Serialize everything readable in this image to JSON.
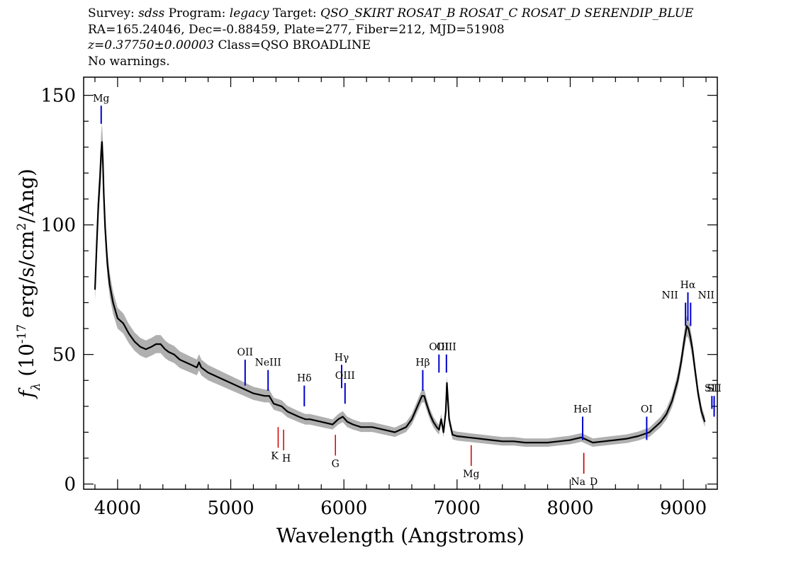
{
  "header": {
    "line1": {
      "survey_label": "Survey:",
      "survey_value": "sdss",
      "program_label": "Program:",
      "program_value": "legacy",
      "target_label": "Target:",
      "target_value": "QSO_SKIRT ROSAT_B ROSAT_C ROSAT_D SERENDIP_BLUE"
    },
    "line2": "RA=165.24046, Dec=-0.88459, Plate=277, Fiber=212, MJD=51908",
    "line3": {
      "redshift": "z=0.37750±0.00003",
      "class": "Class=QSO BROADLINE"
    },
    "line4": "No warnings."
  },
  "chart_data": {
    "type": "line",
    "title": "",
    "xlabel": "Wavelength (Angstroms)",
    "ylabel": "f_λ (10^-17 erg/s/cm^2/Ang)",
    "xlim": [
      3700,
      9300
    ],
    "ylim": [
      -2,
      157
    ],
    "x_ticks": [
      4000,
      5000,
      6000,
      7000,
      8000,
      9000
    ],
    "y_ticks": [
      0,
      50,
      100,
      150
    ],
    "grid": false,
    "colors": {
      "flux": "#000000",
      "error_band": "#b0b0b0",
      "emission": "#0000cc",
      "absorption": "#cc0000"
    },
    "series": [
      {
        "x": [
          3800,
          3815,
          3830,
          3845,
          3855,
          3862,
          3870,
          3878,
          3890,
          3910,
          3930,
          3960,
          4000,
          4050,
          4100,
          4150,
          4200,
          4250,
          4300,
          4340,
          4380,
          4420,
          4450,
          4500,
          4550,
          4600,
          4650,
          4700,
          4720,
          4740,
          4800,
          4900,
          5000,
          5100,
          5200,
          5300,
          5340,
          5380,
          5450,
          5500,
          5600,
          5660,
          5700,
          5800,
          5900,
          5950,
          5990,
          6030,
          6080,
          6150,
          6250,
          6350,
          6450,
          6550,
          6600,
          6650,
          6690,
          6710,
          6730,
          6760,
          6790,
          6820,
          6840,
          6860,
          6880,
          6900,
          6910,
          6930,
          6960,
          7000,
          7100,
          7200,
          7300,
          7400,
          7500,
          7600,
          7700,
          7800,
          7900,
          8000,
          8050,
          8100,
          8150,
          8200,
          8300,
          8400,
          8500,
          8600,
          8700,
          8750,
          8800,
          8850,
          8900,
          8950,
          8980,
          9010,
          9030,
          9045,
          9060,
          9080,
          9100,
          9130,
          9160,
          9190
        ],
        "values": [
          75,
          92,
          108,
          118,
          128,
          132,
          125,
          112,
          99,
          85,
          77,
          70,
          64,
          62,
          58,
          55,
          53,
          52,
          53,
          54,
          54,
          52,
          51,
          50,
          48,
          47,
          46,
          45,
          47,
          45,
          43,
          41,
          39,
          37,
          35,
          34,
          34,
          31,
          30,
          28,
          26,
          25,
          25,
          24,
          23,
          25,
          26,
          24,
          23,
          22,
          22,
          21,
          20,
          22,
          25,
          30,
          34,
          34,
          31,
          27,
          24,
          22,
          21,
          25,
          20,
          28,
          39,
          25,
          19,
          18.5,
          18,
          17.5,
          17,
          16.5,
          16.5,
          16,
          16,
          16,
          16.5,
          17,
          17.5,
          18,
          17,
          16,
          16.5,
          17,
          17.5,
          18.5,
          20,
          22,
          24,
          27,
          32,
          40,
          47,
          56,
          61,
          60,
          57,
          52,
          45,
          35,
          28,
          24
        ]
      }
    ],
    "emission_lines": [
      {
        "label": "Mg",
        "x": 3855,
        "y0": 139,
        "y1": 146
      },
      {
        "label": "OII",
        "x": 5127,
        "y0": 38,
        "y1": 48
      },
      {
        "label": "NeIII",
        "x": 5330,
        "y0": 36,
        "y1": 44
      },
      {
        "label": "Hδ",
        "x": 5650,
        "y0": 30,
        "y1": 38
      },
      {
        "label": "Hγ",
        "x": 5980,
        "y0": 37,
        "y1": 46
      },
      {
        "label": "OIII",
        "x": 6010,
        "y0": 31,
        "y1": 39
      },
      {
        "label": "Hβ",
        "x": 6697,
        "y0": 36,
        "y1": 44
      },
      {
        "label": "OIII",
        "x": 6840,
        "y0": 43,
        "y1": 50
      },
      {
        "label": "OIII",
        "x": 6906,
        "y0": 43,
        "y1": 50
      },
      {
        "label": "HeI",
        "x": 8110,
        "y0": 17,
        "y1": 26
      },
      {
        "label": "OI",
        "x": 8676,
        "y0": 17,
        "y1": 26
      },
      {
        "label": "NII",
        "x": 9019,
        "y0": 61,
        "y1": 70
      },
      {
        "label": "Hα",
        "x": 9040,
        "y0": 63,
        "y1": 74
      },
      {
        "label": "NII",
        "x": 9064,
        "y0": 61,
        "y1": 70
      },
      {
        "label": "SII",
        "x": 9252,
        "y0": 29,
        "y1": 34
      },
      {
        "label": "SII",
        "x": 9272,
        "y0": 26,
        "y1": 34
      }
    ],
    "absorption_lines": [
      {
        "label": "K",
        "x": 5419,
        "y0": 14,
        "y1": 22
      },
      {
        "label": "H",
        "x": 5467,
        "y0": 13,
        "y1": 21
      },
      {
        "label": "G",
        "x": 5925,
        "y0": 11,
        "y1": 19
      },
      {
        "label": "Mg",
        "x": 7125,
        "y0": 7,
        "y1": 15
      },
      {
        "label": "Na",
        "x": 8120,
        "y0": 4,
        "y1": 12
      },
      {
        "label": "D",
        "x": 8120,
        "y0": 4,
        "y1": 12
      }
    ]
  }
}
